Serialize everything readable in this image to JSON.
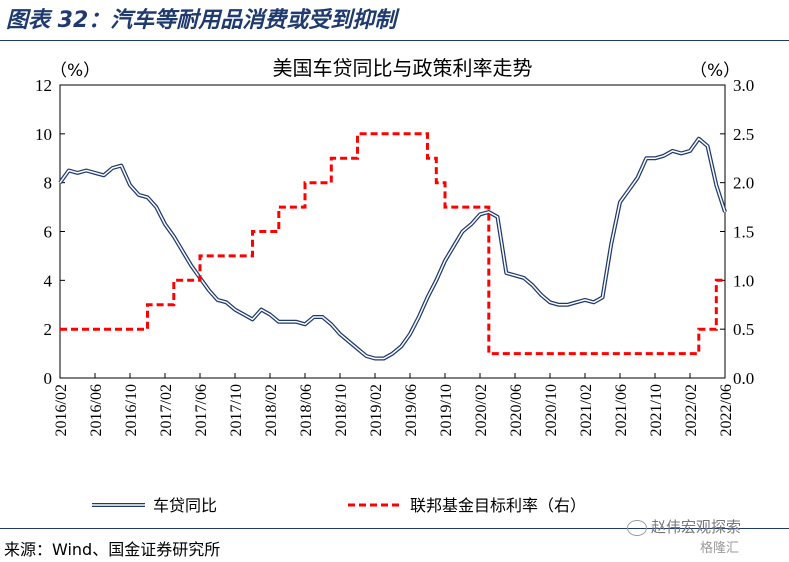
{
  "figure_title": "图表 32：汽车等耐用品消费或受到抑制",
  "source": "来源：Wind、国金证券研究所",
  "watermark": "赵伟宏观探索",
  "watermark2": "格隆汇",
  "chart_data": {
    "type": "line",
    "title": "美国车贷同比与政策利率走势",
    "ylabel_left": "（%）",
    "ylabel_right": "（%）",
    "ylim_left": [
      0,
      12
    ],
    "ylim_right": [
      0,
      3.0
    ],
    "yticks_left": [
      "0",
      "2",
      "4",
      "6",
      "8",
      "10",
      "12"
    ],
    "yticks_right": [
      "0.0",
      "0.5",
      "1.0",
      "1.5",
      "2.0",
      "2.5",
      "3.0"
    ],
    "x_range": [
      "2016/02",
      "2022/06"
    ],
    "xticks": [
      "2016/02",
      "2016/06",
      "2016/10",
      "2017/02",
      "2017/06",
      "2017/10",
      "2018/02",
      "2018/06",
      "2018/10",
      "2019/02",
      "2019/06",
      "2019/10",
      "2020/02",
      "2020/06",
      "2020/10",
      "2021/02",
      "2021/06",
      "2021/10",
      "2022/02",
      "2022/06"
    ],
    "legend_position": "bottom",
    "series": [
      {
        "name": "车贷同比",
        "axis": "left",
        "style": "double-line",
        "color": "#1f3a6e",
        "points": [
          [
            "2016/02",
            8.0
          ],
          [
            "2016/03",
            8.5
          ],
          [
            "2016/04",
            8.4
          ],
          [
            "2016/05",
            8.5
          ],
          [
            "2016/06",
            8.4
          ],
          [
            "2016/07",
            8.3
          ],
          [
            "2016/08",
            8.6
          ],
          [
            "2016/09",
            8.7
          ],
          [
            "2016/10",
            7.9
          ],
          [
            "2016/11",
            7.5
          ],
          [
            "2016/12",
            7.4
          ],
          [
            "2017/01",
            7.0
          ],
          [
            "2017/02",
            6.3
          ],
          [
            "2017/03",
            5.8
          ],
          [
            "2017/04",
            5.2
          ],
          [
            "2017/05",
            4.6
          ],
          [
            "2017/06",
            4.1
          ],
          [
            "2017/07",
            3.6
          ],
          [
            "2017/08",
            3.2
          ],
          [
            "2017/09",
            3.1
          ],
          [
            "2017/10",
            2.8
          ],
          [
            "2017/11",
            2.6
          ],
          [
            "2017/12",
            2.4
          ],
          [
            "2018/01",
            2.8
          ],
          [
            "2018/02",
            2.6
          ],
          [
            "2018/03",
            2.3
          ],
          [
            "2018/04",
            2.3
          ],
          [
            "2018/05",
            2.3
          ],
          [
            "2018/06",
            2.2
          ],
          [
            "2018/07",
            2.5
          ],
          [
            "2018/08",
            2.5
          ],
          [
            "2018/09",
            2.2
          ],
          [
            "2018/10",
            1.8
          ],
          [
            "2018/11",
            1.5
          ],
          [
            "2018/12",
            1.2
          ],
          [
            "2019/01",
            0.9
          ],
          [
            "2019/02",
            0.8
          ],
          [
            "2019/03",
            0.8
          ],
          [
            "2019/04",
            1.0
          ],
          [
            "2019/05",
            1.3
          ],
          [
            "2019/06",
            1.8
          ],
          [
            "2019/07",
            2.5
          ],
          [
            "2019/08",
            3.3
          ],
          [
            "2019/09",
            4.0
          ],
          [
            "2019/10",
            4.8
          ],
          [
            "2019/11",
            5.4
          ],
          [
            "2019/12",
            6.0
          ],
          [
            "2020/01",
            6.3
          ],
          [
            "2020/02",
            6.7
          ],
          [
            "2020/03",
            6.8
          ],
          [
            "2020/04",
            6.6
          ],
          [
            "2020/05",
            4.3
          ],
          [
            "2020/06",
            4.2
          ],
          [
            "2020/07",
            4.1
          ],
          [
            "2020/08",
            3.8
          ],
          [
            "2020/09",
            3.4
          ],
          [
            "2020/10",
            3.1
          ],
          [
            "2020/11",
            3.0
          ],
          [
            "2020/12",
            3.0
          ],
          [
            "2021/01",
            3.1
          ],
          [
            "2021/02",
            3.2
          ],
          [
            "2021/03",
            3.1
          ],
          [
            "2021/04",
            3.3
          ],
          [
            "2021/05",
            5.5
          ],
          [
            "2021/06",
            7.2
          ],
          [
            "2021/07",
            7.7
          ],
          [
            "2021/08",
            8.2
          ],
          [
            "2021/09",
            9.0
          ],
          [
            "2021/10",
            9.0
          ],
          [
            "2021/11",
            9.1
          ],
          [
            "2021/12",
            9.3
          ],
          [
            "2022/01",
            9.2
          ],
          [
            "2022/02",
            9.3
          ],
          [
            "2022/03",
            9.8
          ],
          [
            "2022/04",
            9.5
          ],
          [
            "2022/05",
            7.9
          ],
          [
            "2022/06",
            6.8
          ]
        ]
      },
      {
        "name": "联邦基金目标利率（右）",
        "axis": "right",
        "style": "dashed",
        "color": "#ff0000",
        "points": [
          [
            "2016/02",
            0.5
          ],
          [
            "2016/12",
            0.5
          ],
          [
            "2016/12",
            0.75
          ],
          [
            "2017/03",
            0.75
          ],
          [
            "2017/03",
            1.0
          ],
          [
            "2017/06",
            1.0
          ],
          [
            "2017/06",
            1.25
          ],
          [
            "2017/12",
            1.25
          ],
          [
            "2017/12",
            1.5
          ],
          [
            "2018/03",
            1.5
          ],
          [
            "2018/03",
            1.75
          ],
          [
            "2018/06",
            1.75
          ],
          [
            "2018/06",
            2.0
          ],
          [
            "2018/09",
            2.0
          ],
          [
            "2018/09",
            2.25
          ],
          [
            "2018/12",
            2.25
          ],
          [
            "2018/12",
            2.5
          ],
          [
            "2019/08",
            2.5
          ],
          [
            "2019/08",
            2.25
          ],
          [
            "2019/09",
            2.25
          ],
          [
            "2019/09",
            2.0
          ],
          [
            "2019/10",
            2.0
          ],
          [
            "2019/10",
            1.75
          ],
          [
            "2020/03",
            1.75
          ],
          [
            "2020/03",
            1.25
          ],
          [
            "2020/03",
            0.25
          ],
          [
            "2022/03",
            0.25
          ],
          [
            "2022/03",
            0.5
          ],
          [
            "2022/05",
            0.5
          ],
          [
            "2022/05",
            1.0
          ],
          [
            "2022/06",
            1.0
          ]
        ]
      }
    ]
  }
}
